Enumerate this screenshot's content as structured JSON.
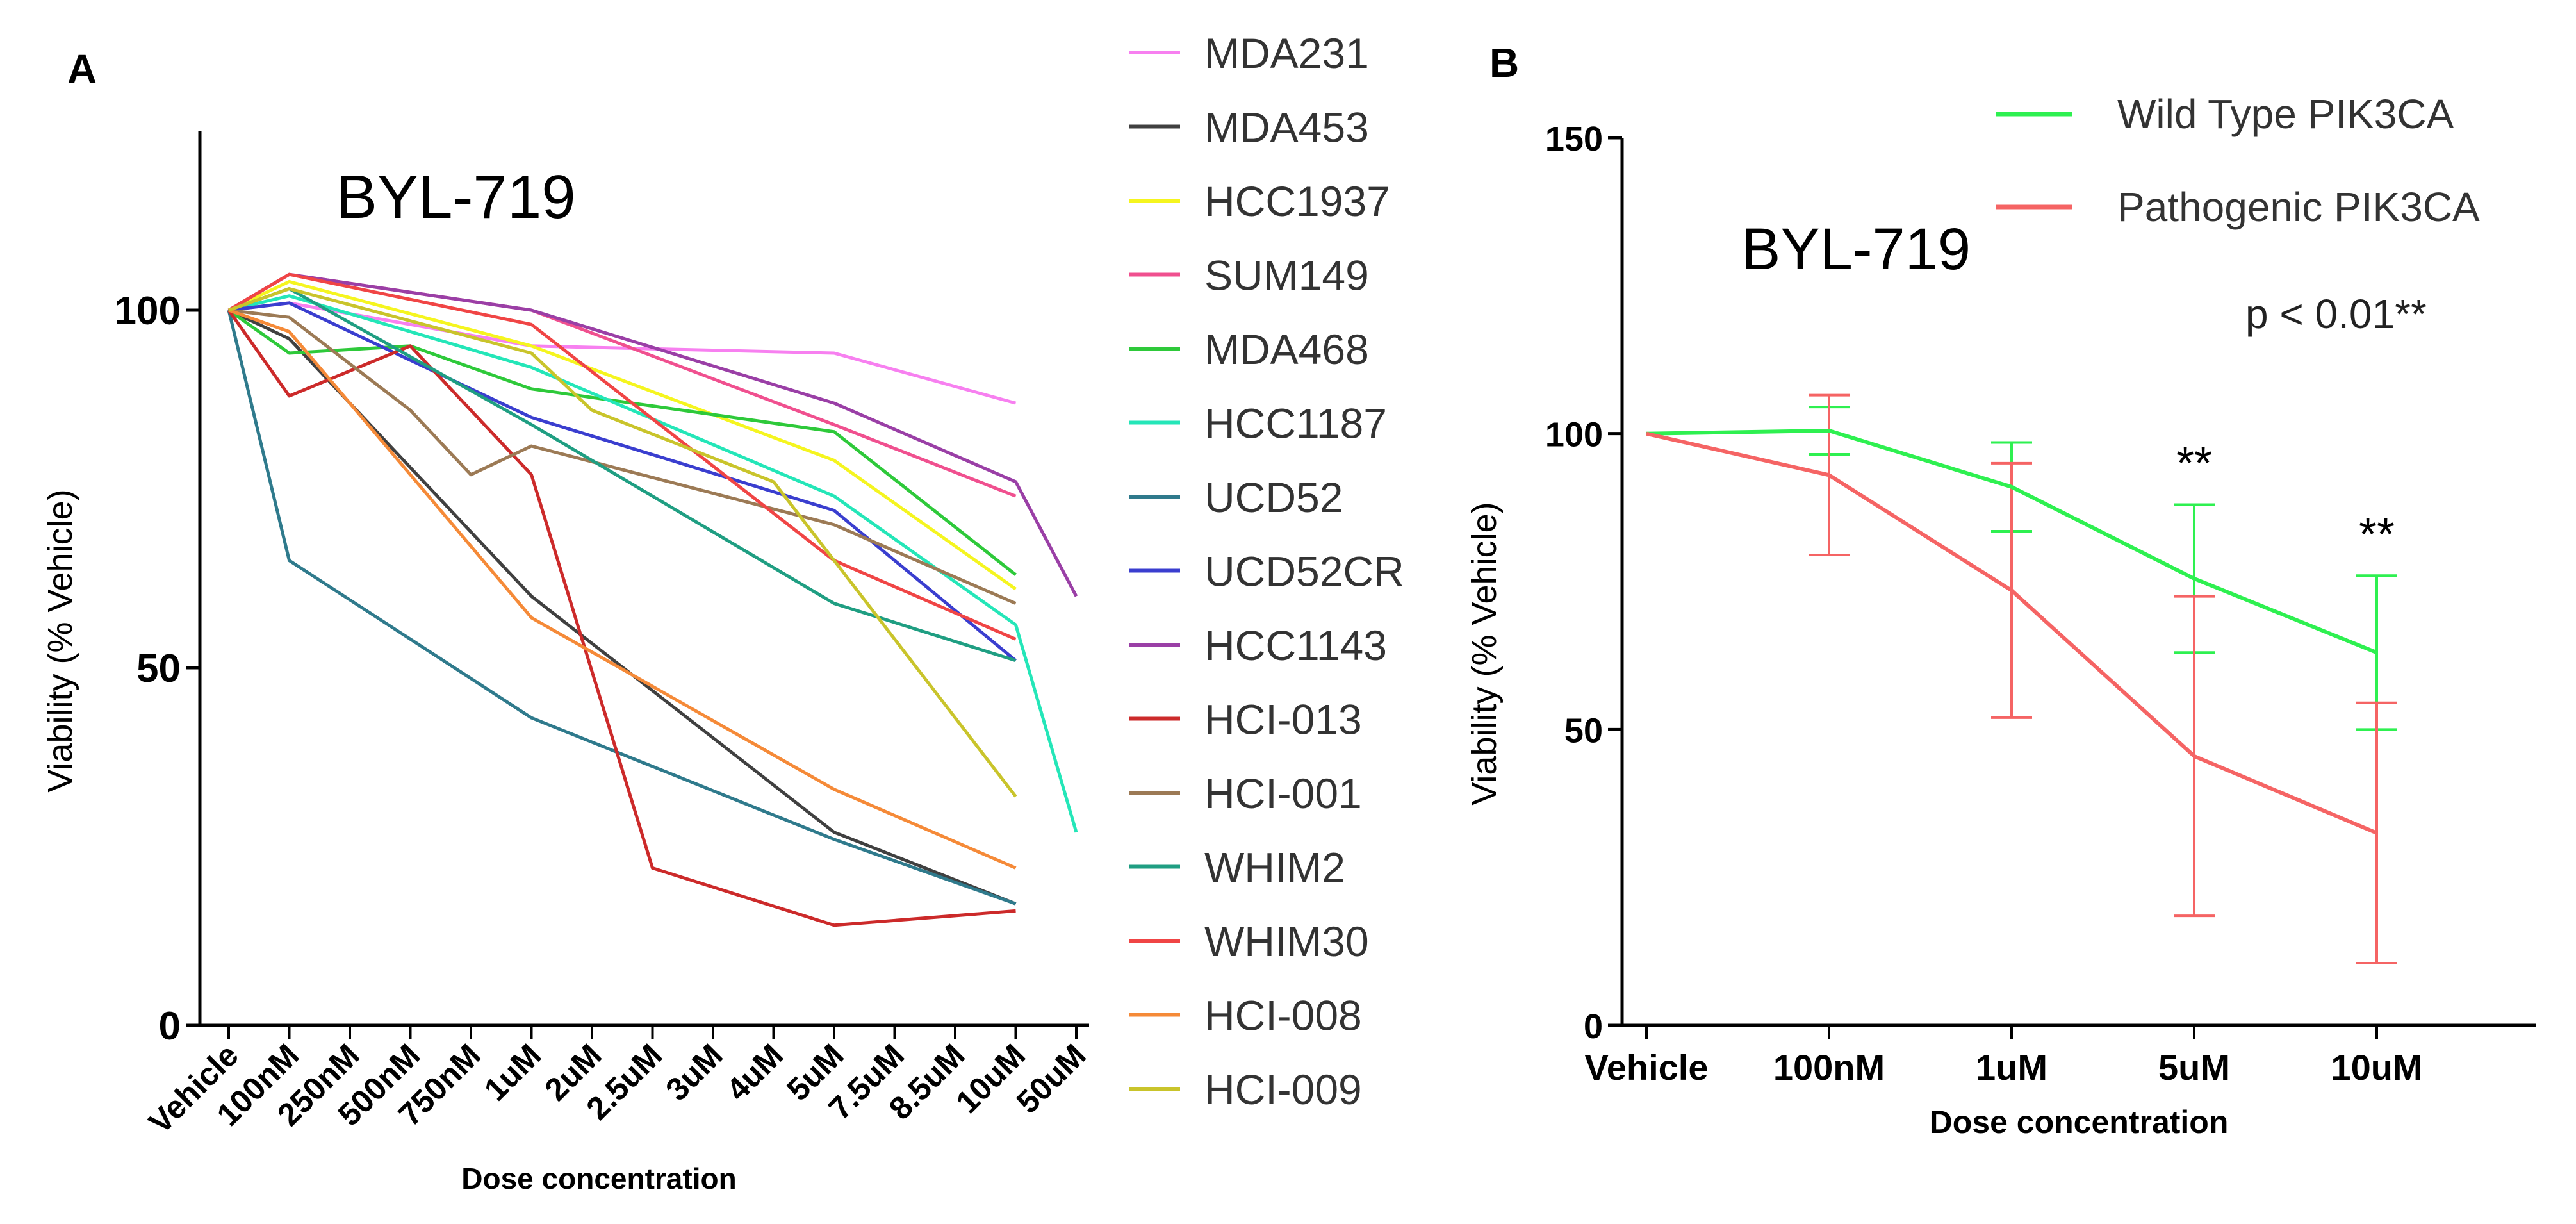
{
  "chart_data": [
    {
      "panel": "A",
      "type": "line",
      "title": "BYL-719",
      "xlabel": "Dose concentration",
      "ylabel": "Viability (% Vehicle)",
      "ylim": [
        0,
        125
      ],
      "yticks": [
        0,
        50,
        100
      ],
      "categories": [
        "Vehicle",
        "100nM",
        "250nM",
        "500nM",
        "750nM",
        "1uM",
        "2uM",
        "2.5uM",
        "3uM",
        "4uM",
        "5uM",
        "7.5uM",
        "8.5uM",
        "10uM",
        "50uM"
      ],
      "legend_position": "right",
      "series": [
        {
          "name": "MDA231",
          "color": "#f780f0",
          "points": [
            [
              0,
              100
            ],
            [
              1,
              101
            ],
            [
              5,
              95
            ],
            [
              10,
              94
            ],
            [
              13,
              87
            ]
          ]
        },
        {
          "name": "MDA453",
          "color": "#404040",
          "points": [
            [
              0,
              100
            ],
            [
              1,
              96
            ],
            [
              5,
              60
            ],
            [
              10,
              27
            ],
            [
              13,
              17
            ]
          ]
        },
        {
          "name": "HCC1937",
          "color": "#f5f51f",
          "points": [
            [
              0,
              100
            ],
            [
              1,
              104
            ],
            [
              5,
              95
            ],
            [
              10,
              79
            ],
            [
              13,
              61
            ]
          ]
        },
        {
          "name": "SUM149",
          "color": "#f0508f",
          "points": [
            [
              0,
              100
            ],
            [
              1,
              105
            ],
            [
              5,
              100
            ],
            [
              10,
              84
            ],
            [
              13,
              74
            ]
          ]
        },
        {
          "name": "MDA468",
          "color": "#2ec93a",
          "points": [
            [
              0,
              100
            ],
            [
              1,
              94
            ],
            [
              3,
              95
            ],
            [
              5,
              89
            ],
            [
              10,
              83
            ],
            [
              13,
              63
            ]
          ]
        },
        {
          "name": "HCC1187",
          "color": "#24e6b8",
          "points": [
            [
              0,
              100
            ],
            [
              1,
              102
            ],
            [
              5,
              92
            ],
            [
              10,
              74
            ],
            [
              13,
              56
            ],
            [
              14,
              27
            ]
          ]
        },
        {
          "name": "UCD52",
          "color": "#2f7a8c",
          "points": [
            [
              0,
              100
            ],
            [
              1,
              65
            ],
            [
              5,
              43
            ],
            [
              10,
              26
            ],
            [
              13,
              17
            ]
          ]
        },
        {
          "name": "UCD52CR",
          "color": "#3a3ecf",
          "points": [
            [
              0,
              100
            ],
            [
              1,
              101
            ],
            [
              5,
              85
            ],
            [
              10,
              72
            ],
            [
              13,
              51
            ]
          ]
        },
        {
          "name": "HCC1143",
          "color": "#9a3fa6",
          "points": [
            [
              0,
              100
            ],
            [
              1,
              105
            ],
            [
              5,
              100
            ],
            [
              10,
              87
            ],
            [
              13,
              76
            ],
            [
              14,
              60
            ]
          ]
        },
        {
          "name": "HCI-013",
          "color": "#cc2a2a",
          "points": [
            [
              0,
              100
            ],
            [
              1,
              88
            ],
            [
              3,
              95
            ],
            [
              5,
              77
            ],
            [
              7,
              22
            ],
            [
              10,
              14
            ],
            [
              13,
              16
            ]
          ]
        },
        {
          "name": "HCI-001",
          "color": "#9c7a55",
          "points": [
            [
              0,
              100
            ],
            [
              1,
              99
            ],
            [
              3,
              86
            ],
            [
              4,
              77
            ],
            [
              5,
              81
            ],
            [
              10,
              70
            ],
            [
              13,
              59
            ]
          ]
        },
        {
          "name": "WHIM2",
          "color": "#1f9e82",
          "points": [
            [
              0,
              100
            ],
            [
              1,
              103
            ],
            [
              5,
              84
            ],
            [
              10,
              59
            ],
            [
              13,
              51
            ]
          ]
        },
        {
          "name": "WHIM30",
          "color": "#f04545",
          "points": [
            [
              0,
              100
            ],
            [
              1,
              105
            ],
            [
              5,
              98
            ],
            [
              10,
              65
            ],
            [
              13,
              54
            ]
          ]
        },
        {
          "name": "HCI-008",
          "color": "#f58a38",
          "points": [
            [
              0,
              100
            ],
            [
              1,
              97
            ],
            [
              5,
              57
            ],
            [
              10,
              33
            ],
            [
              13,
              22
            ]
          ]
        },
        {
          "name": "HCI-009",
          "color": "#c9c42b",
          "points": [
            [
              0,
              100
            ],
            [
              1,
              103
            ],
            [
              5,
              94
            ],
            [
              6,
              86
            ],
            [
              9,
              76
            ],
            [
              13,
              32
            ]
          ]
        }
      ]
    },
    {
      "panel": "B",
      "type": "line",
      "title": "BYL-719",
      "xlabel": "Dose concentration",
      "ylabel": "Viability (% Vehicle)",
      "ylim": [
        0,
        150
      ],
      "yticks": [
        0,
        50,
        100,
        150
      ],
      "categories": [
        "Vehicle",
        "100nM",
        "1uM",
        "5uM",
        "10uM"
      ],
      "legend_position": "top-right",
      "annotation": "p < 0.01**",
      "significance": [
        {
          "category": "5uM",
          "label": "**"
        },
        {
          "category": "10uM",
          "label": "**"
        }
      ],
      "series": [
        {
          "name": "Wild Type PIK3CA",
          "color": "#2ef050",
          "values": [
            100,
            100.5,
            91,
            75.5,
            63
          ],
          "error": [
            null,
            4,
            7.5,
            12.5,
            13
          ]
        },
        {
          "name": "Pathogenic PIK3CA",
          "color": "#f56464",
          "values": [
            100,
            93,
            73.5,
            45.5,
            32.5
          ],
          "error": [
            null,
            13.5,
            21.5,
            27,
            22
          ]
        }
      ]
    }
  ]
}
